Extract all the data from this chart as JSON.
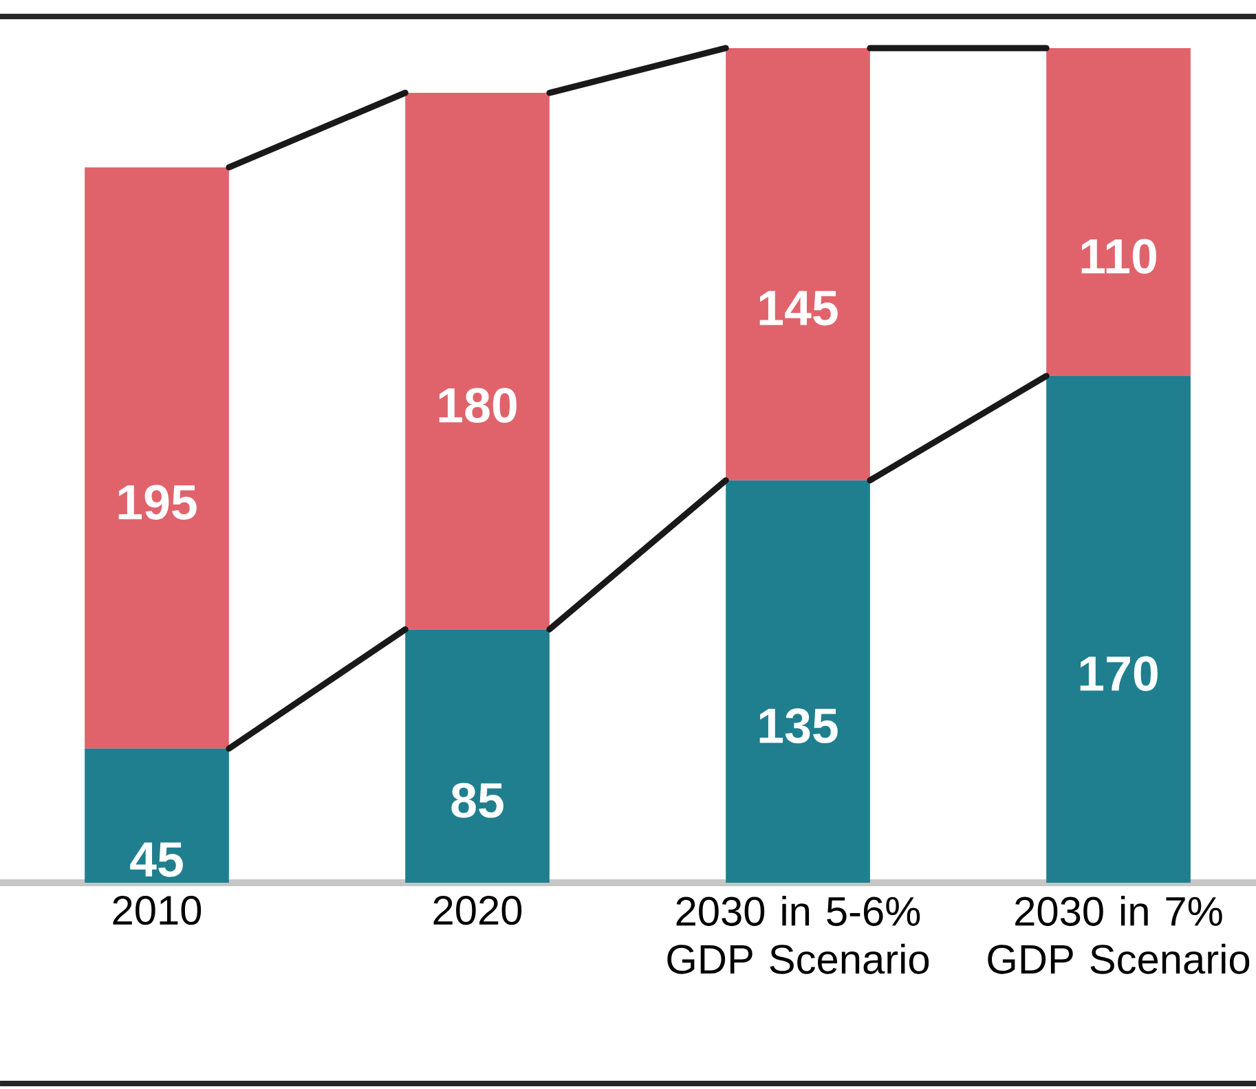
{
  "chart_data": {
    "type": "bar",
    "stacked": true,
    "data_labels": true,
    "categories": [
      "2010",
      "2020",
      "2030 in 5-6% GDP Scenario",
      "2030 in 7% GDP Scenario"
    ],
    "series": [
      {
        "color": "#1f7f8e",
        "values": [
          45,
          85,
          135,
          170
        ]
      },
      {
        "color": "#e0636b",
        "values": [
          195,
          180,
          145,
          110
        ]
      }
    ]
  }
}
